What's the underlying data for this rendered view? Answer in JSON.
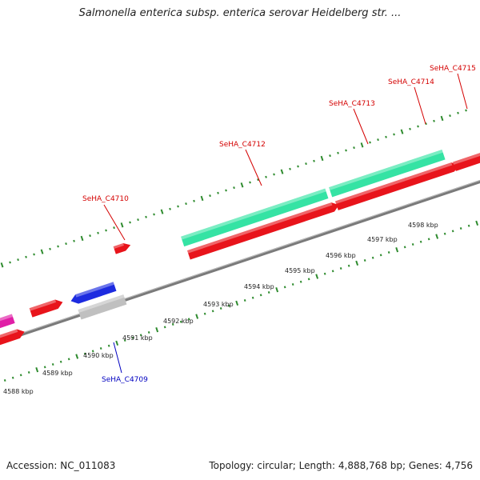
{
  "title": "Salmonella enterica subsp. enterica serovar Heidelberg str. ...",
  "footer": {
    "accession": "Accession: NC_011083",
    "summary": "Topology: circular; Length: 4,888,768 bp; Genes: 4,756"
  },
  "colors": {
    "forward_cds": "#e8141b",
    "reverse_cds": "#e8141b",
    "highlight_gene": "#35e3a4",
    "blue_gene": "#1d2be0",
    "grey_gene": "#c0c0c0",
    "pink_gene": "#e01ea6",
    "backbone": "#7a7a7a",
    "ticks": "#2e8b2e",
    "label_red": "#d40000",
    "label_blue": "#0000c0"
  },
  "scale": {
    "unit": "kbp",
    "labels": [
      "4588 kbp",
      "4589 kbp",
      "4590 kbp",
      "4591 kbp",
      "4592 kbp",
      "4593 kbp",
      "4594 kbp",
      "4595 kbp",
      "4596 kbp",
      "4597 kbp",
      "4598 kbp"
    ]
  },
  "gene_labels": [
    {
      "text": "SeHA_C4709",
      "color": "label_blue"
    },
    {
      "text": "SeHA_C4710",
      "color": "label_red"
    },
    {
      "text": "SeHA_C4712",
      "color": "label_red"
    },
    {
      "text": "SeHA_C4713",
      "color": "label_red"
    },
    {
      "text": "SeHA_C4714",
      "color": "label_red"
    },
    {
      "text": "SeHA_C4715",
      "color": "label_red"
    }
  ]
}
